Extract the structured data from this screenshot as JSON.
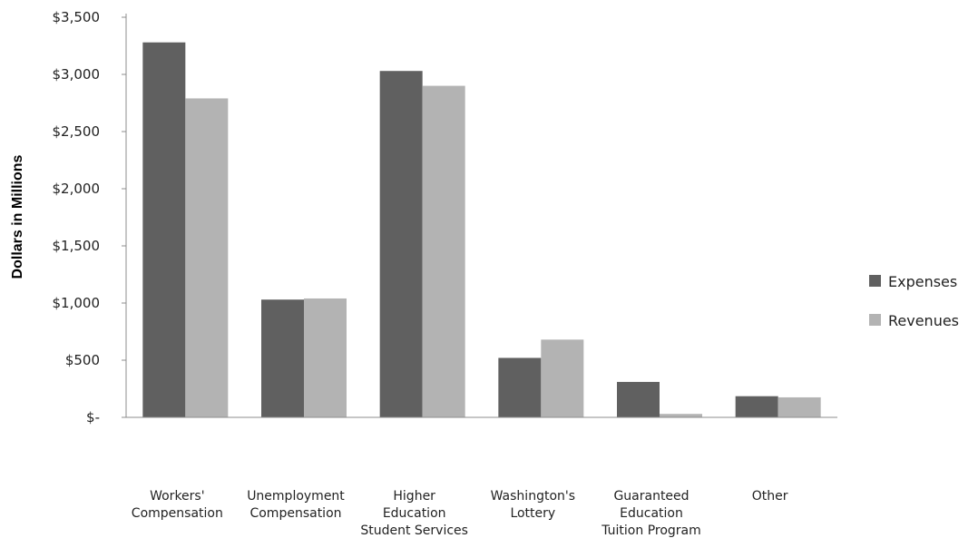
{
  "chart_data": {
    "type": "bar",
    "title": "",
    "xlabel": "",
    "ylabel": "Dollars in Millions",
    "ylim": [
      0,
      3500
    ],
    "yticks": [
      {
        "value": 0,
        "label": "$-"
      },
      {
        "value": 500,
        "label": "$500"
      },
      {
        "value": 1000,
        "label": "$1,000"
      },
      {
        "value": 1500,
        "label": "$1,500"
      },
      {
        "value": 2000,
        "label": "$2,000"
      },
      {
        "value": 2500,
        "label": "$2,500"
      },
      {
        "value": 3000,
        "label": "$3,000"
      },
      {
        "value": 3500,
        "label": "$3,500"
      }
    ],
    "grid": false,
    "legend_position": "right",
    "categories": [
      [
        "Workers'",
        "Compensation"
      ],
      [
        "Unemployment",
        "Compensation"
      ],
      [
        "Higher",
        "Education",
        "Student Services"
      ],
      [
        "Washington's",
        "Lottery"
      ],
      [
        "Guaranteed",
        "Education",
        "Tuition Program"
      ],
      [
        "Other"
      ]
    ],
    "series": [
      {
        "name": "Expenses",
        "color": "#606060",
        "values": [
          3280,
          1030,
          3030,
          520,
          310,
          185
        ]
      },
      {
        "name": "Revenues",
        "color": "#b3b3b3",
        "values": [
          2790,
          1040,
          2900,
          680,
          30,
          175
        ]
      }
    ]
  }
}
